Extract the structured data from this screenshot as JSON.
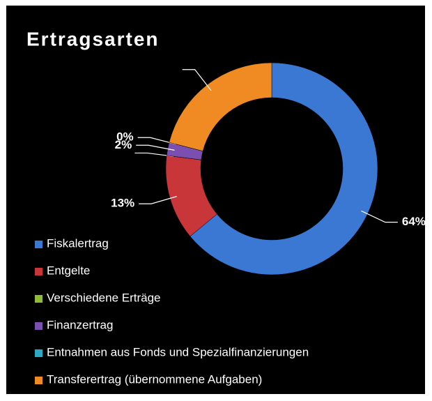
{
  "chart_data": {
    "type": "pie",
    "title": "Ertragsarten",
    "categories": [
      "Fiskalertrag",
      "Entgelte",
      "Verschiedene Erträge",
      "Finanzertrag",
      "Entnahmen aus Fonds und Spezialfinanzierungen",
      "Transferertrag (übernommene Aufgaben)"
    ],
    "values": [
      64,
      13,
      0,
      2,
      0,
      21
    ],
    "value_labels": [
      "64%",
      "13%",
      null,
      "2%",
      "0%",
      null
    ],
    "colors": [
      "#3a78d4",
      "#c8363a",
      "#8fba3a",
      "#7a4fb0",
      "#2aa9c4",
      "#ef8b22"
    ],
    "donut": true,
    "legend": "left"
  }
}
